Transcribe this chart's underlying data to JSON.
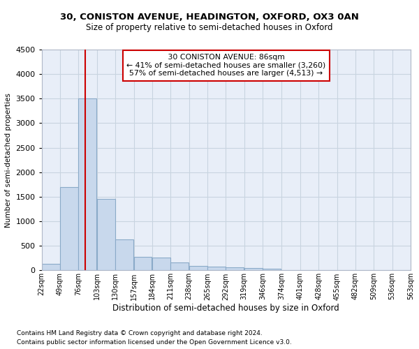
{
  "title1": "30, CONISTON AVENUE, HEADINGTON, OXFORD, OX3 0AN",
  "title2": "Size of property relative to semi-detached houses in Oxford",
  "xlabel": "Distribution of semi-detached houses by size in Oxford",
  "ylabel": "Number of semi-detached properties",
  "footnote1": "Contains HM Land Registry data © Crown copyright and database right 2024.",
  "footnote2": "Contains public sector information licensed under the Open Government Licence v3.0.",
  "annotation_title": "30 CONISTON AVENUE: 86sqm",
  "annotation_line1": "← 41% of semi-detached houses are smaller (3,260)",
  "annotation_line2": "57% of semi-detached houses are larger (4,513) →",
  "property_size": 86,
  "bin_edges": [
    22,
    49,
    76,
    103,
    130,
    157,
    184,
    211,
    238,
    265,
    292,
    319,
    346,
    374,
    401,
    428,
    455,
    482,
    509,
    536,
    563
  ],
  "bar_heights": [
    130,
    1700,
    3500,
    1450,
    625,
    270,
    265,
    160,
    95,
    80,
    55,
    50,
    40,
    0,
    0,
    0,
    0,
    0,
    0,
    0
  ],
  "bar_color": "#c8d8ec",
  "bar_edgecolor": "#8aaac8",
  "line_color": "#cc0000",
  "grid_color": "#c8d4e0",
  "background_color": "#e8eef8",
  "ylim": [
    0,
    4500
  ],
  "yticks": [
    0,
    500,
    1000,
    1500,
    2000,
    2500,
    3000,
    3500,
    4000,
    4500
  ]
}
